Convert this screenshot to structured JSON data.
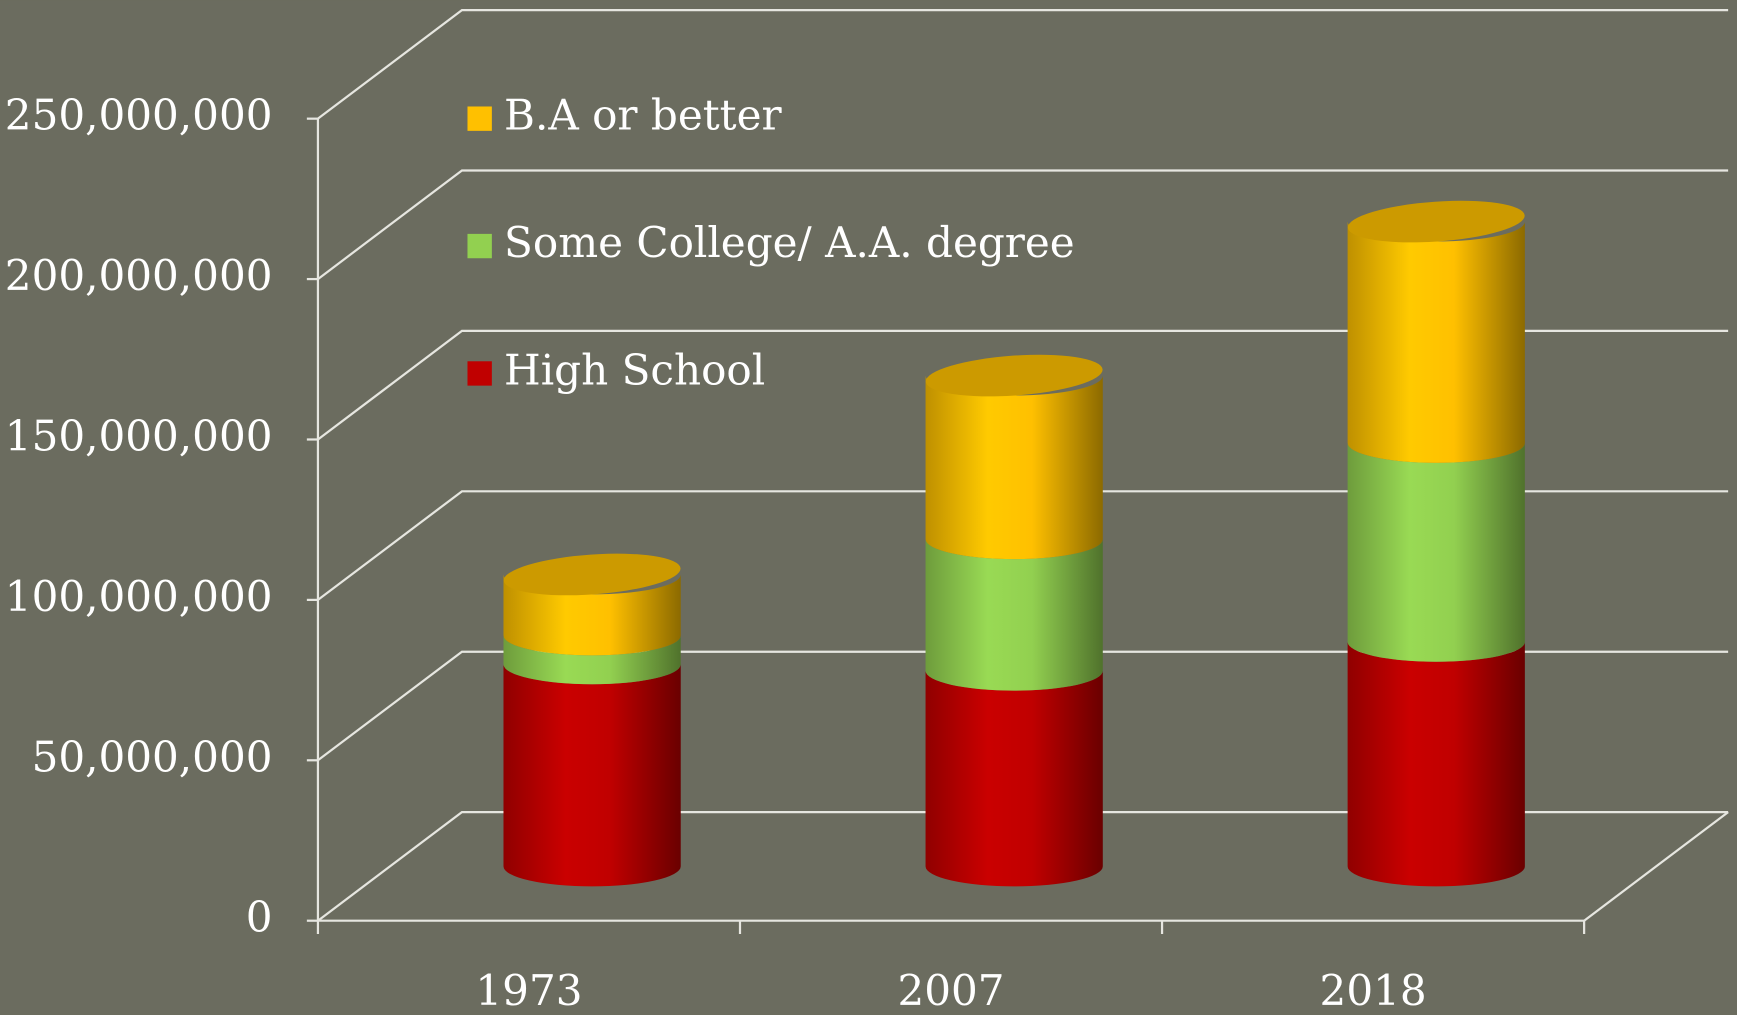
{
  "chart_data": {
    "type": "bar",
    "stacked": true,
    "categories": [
      "1973",
      "2007",
      "2018"
    ],
    "series": [
      {
        "name": "High School",
        "color": "#c00000",
        "values": [
          63000000,
          61000000,
          70000000
        ]
      },
      {
        "name": "Some College/ A.A. degree",
        "color": "#92d050",
        "values": [
          9000000,
          41000000,
          62000000
        ]
      },
      {
        "name": "B.A or better",
        "color": "#ffc000",
        "values": [
          19000000,
          51000000,
          69000000
        ]
      }
    ],
    "ylim": [
      0,
      250000000
    ],
    "yticks": [
      0,
      {
        "value": 50000000,
        "label": "50,000,000"
      },
      {
        "value": 100000000,
        "label": "100,000,000"
      },
      {
        "value": 150000000,
        "label": "150,000,000"
      },
      {
        "value": 200000000,
        "label": "200,000,000"
      },
      {
        "value": 250000000,
        "label": "250,000,000"
      }
    ],
    "grid": true
  }
}
